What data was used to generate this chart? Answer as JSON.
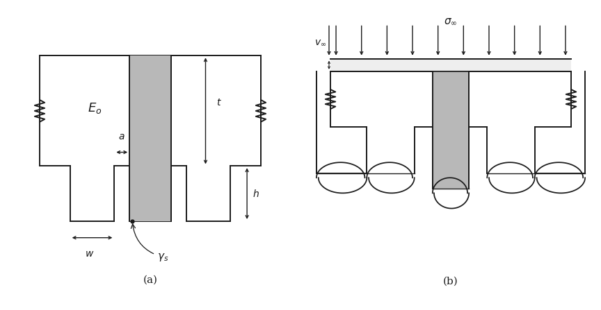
{
  "bg_color": "#ffffff",
  "line_color": "#1a1a1a",
  "gray_fill": "#b8b8b8",
  "fig_width": 8.64,
  "fig_height": 4.47,
  "label_a": "(a)",
  "label_b": "(b)"
}
